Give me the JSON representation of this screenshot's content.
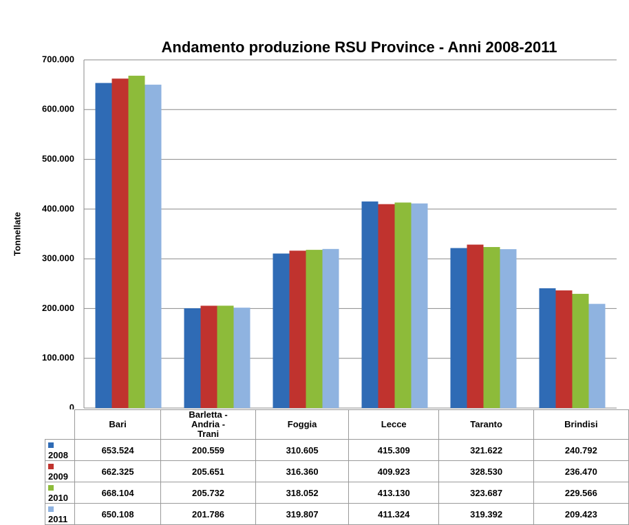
{
  "chart_data": {
    "type": "bar",
    "title": "Andamento produzione RSU Province - Anni 2008-2011",
    "y_label": "Tonnellate",
    "categories": [
      "Bari",
      "Barletta - Andria - Trani",
      "Foggia",
      "Lecce",
      "Taranto",
      "Brindisi"
    ],
    "series": [
      {
        "name": "2008",
        "color": "#2f6bb5",
        "values": [
          653524,
          200559,
          310605,
          415309,
          321622,
          240792
        ],
        "value_labels": [
          "653.524",
          "200.559",
          "310.605",
          "415.309",
          "321.622",
          "240.792"
        ]
      },
      {
        "name": "2009",
        "color": "#c0332e",
        "values": [
          662325,
          205651,
          316360,
          409923,
          328530,
          236470
        ],
        "value_labels": [
          "662.325",
          "205.651",
          "316.360",
          "409.923",
          "328.530",
          "236.470"
        ]
      },
      {
        "name": "2010",
        "color": "#8dbb3a",
        "values": [
          668104,
          205732,
          318052,
          413130,
          323687,
          229566
        ],
        "value_labels": [
          "668.104",
          "205.732",
          "318.052",
          "413.130",
          "323.687",
          "229.566"
        ]
      },
      {
        "name": "2011",
        "color": "#8fb3e0",
        "values": [
          650108,
          201786,
          319807,
          411324,
          319392,
          209423
        ],
        "value_labels": [
          "650.108",
          "201.786",
          "319.807",
          "411.324",
          "319.392",
          "209.423"
        ]
      }
    ],
    "ylim": [
      0,
      700000
    ],
    "yticks": [
      0,
      {
        "value": 100000,
        "label": "100.000"
      },
      {
        "value": 200000,
        "label": "200.000"
      },
      {
        "value": 300000,
        "label": "300.000"
      },
      {
        "value": 400000,
        "label": "400.000"
      },
      {
        "value": 500000,
        "label": "500.000"
      },
      {
        "value": 600000,
        "label": "600.000"
      },
      {
        "value": 700000,
        "label": "700.000"
      }
    ],
    "grid": true
  }
}
